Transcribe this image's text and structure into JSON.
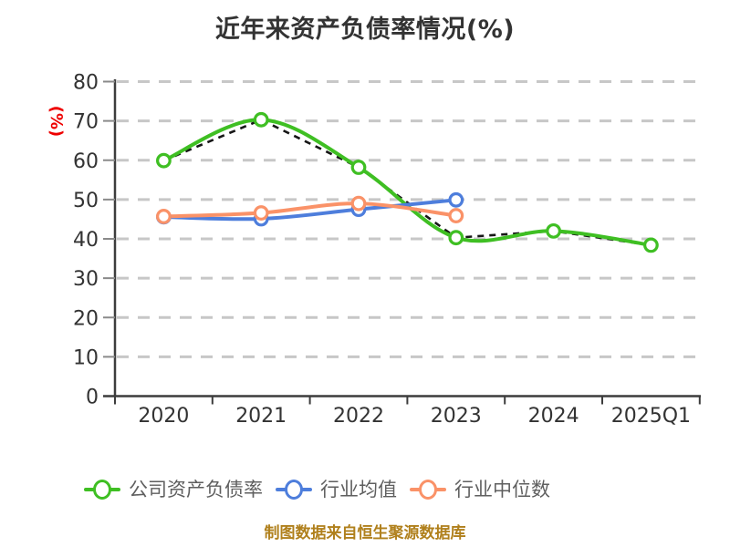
{
  "title": "近年来资产负债率情况(%)",
  "y_axis_unit": "(%)",
  "footer": "制图数据来自恒生聚源数据库",
  "chart_data": {
    "type": "line",
    "categories": [
      "2020",
      "2021",
      "2022",
      "2023",
      "2024",
      "2025Q1"
    ],
    "series": [
      {
        "name": "公司资产负债率",
        "color": "#3fbf23",
        "values": [
          59.9,
          70.3,
          58.2,
          40.3,
          42.0,
          38.4
        ],
        "dashed_overlay": true
      },
      {
        "name": "行业均值",
        "color": "#4e7edc",
        "values": [
          45.6,
          45.1,
          47.5,
          49.9
        ],
        "dashed_overlay": false
      },
      {
        "name": "行业中位数",
        "color": "#fa9268",
        "values": [
          45.7,
          46.6,
          49.0,
          45.9
        ],
        "dashed_overlay": false
      }
    ],
    "ylabel": "(%)",
    "ylim": [
      0,
      80
    ],
    "y_ticks": [
      0,
      10,
      20,
      30,
      40,
      50,
      60,
      70,
      80
    ],
    "grid": "horizontal-dashed",
    "legend_position": "bottom",
    "marker_style": "hollow-circle"
  },
  "colors": {
    "grid_line": "#c7c7c7",
    "axis_line": "#3c3c3c",
    "y_tick": "#8a8a8a",
    "axis_text": "#333333",
    "title_text": "#333333",
    "legend_text": "#5f5f5f",
    "unit_label_red": "#ee0000",
    "footer_gold": "#b0801c",
    "dashed_overlay": "#161616",
    "marker_fill": "#ffffff"
  }
}
